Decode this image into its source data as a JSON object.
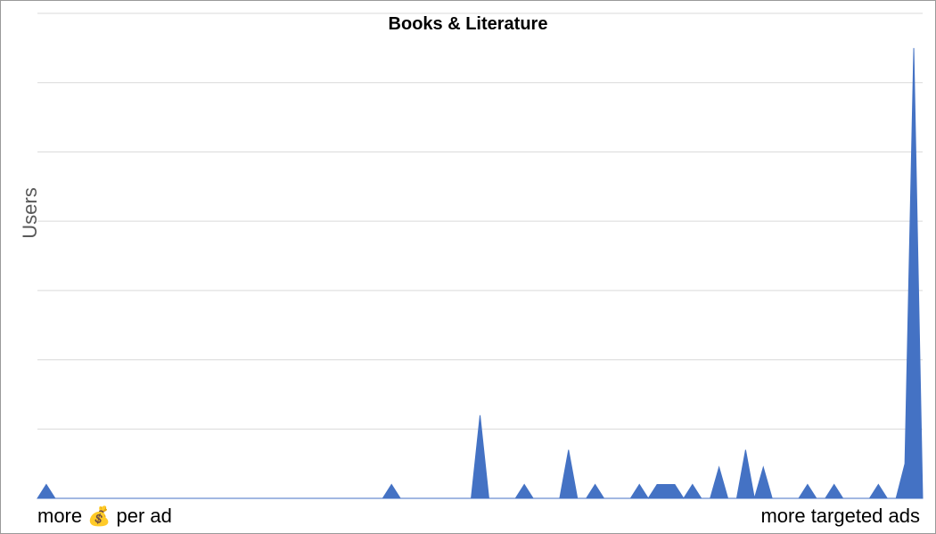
{
  "chart_data": {
    "type": "area",
    "title": "Books & Literature",
    "ylabel": "Users",
    "xlabel_left": "more 💰 per ad",
    "xlabel_right": "more targeted ads",
    "series_color": "#4472c4",
    "grid_color": "#d9d9d9",
    "grid": true,
    "legend": "none",
    "x_range": [
      0,
      100
    ],
    "ylim": [
      0,
      70
    ],
    "gridline_count": 7,
    "x": [
      0,
      1,
      2,
      3,
      4,
      5,
      6,
      7,
      8,
      9,
      10,
      11,
      12,
      13,
      14,
      15,
      16,
      17,
      18,
      19,
      20,
      21,
      22,
      23,
      24,
      25,
      26,
      27,
      28,
      29,
      30,
      31,
      32,
      33,
      34,
      35,
      36,
      37,
      38,
      39,
      40,
      41,
      42,
      43,
      44,
      45,
      46,
      47,
      48,
      49,
      50,
      51,
      52,
      53,
      54,
      55,
      56,
      57,
      58,
      59,
      60,
      61,
      62,
      63,
      64,
      65,
      66,
      67,
      68,
      69,
      70,
      71,
      72,
      73,
      74,
      75,
      76,
      77,
      78,
      79,
      80,
      81,
      82,
      83,
      84,
      85,
      86,
      87,
      88,
      89,
      90,
      91,
      92,
      93,
      94,
      95,
      96,
      97,
      98,
      99,
      100
    ],
    "values": [
      0,
      2,
      0,
      0,
      0,
      0,
      0,
      0,
      0,
      0,
      0,
      0,
      0,
      0,
      0,
      0,
      0,
      0,
      0,
      0,
      0,
      0,
      0,
      0,
      0,
      0,
      0,
      0,
      0,
      0,
      0,
      0,
      0,
      0,
      0,
      0,
      0,
      0,
      0,
      0,
      2,
      0,
      0,
      0,
      0,
      0,
      0,
      0,
      0,
      0,
      12,
      0,
      0,
      0,
      0,
      2,
      0,
      0,
      0,
      0,
      7,
      0,
      0,
      2,
      0,
      0,
      0,
      0,
      2,
      0,
      2,
      2,
      2,
      0,
      2,
      0,
      0,
      4.5,
      0,
      0,
      7,
      0,
      4.5,
      0,
      0,
      0,
      0,
      2,
      0,
      0,
      2,
      0,
      0,
      0,
      0,
      2,
      0,
      0,
      5,
      65,
      0
    ]
  }
}
